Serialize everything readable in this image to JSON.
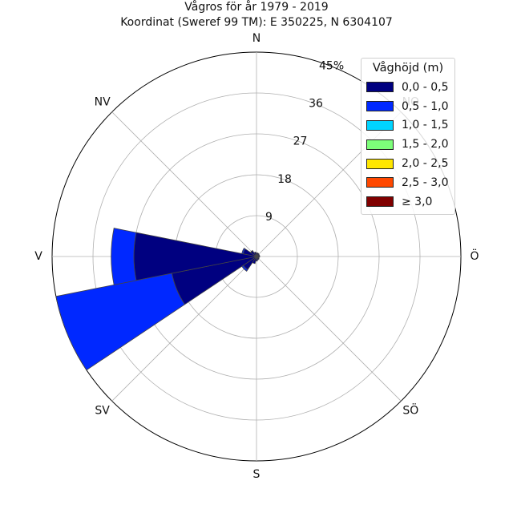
{
  "title": {
    "line1": "Vågros för år 1979 - 2019",
    "line2": "Koordinat (Sweref 99 TM): E 350225, N 6304107"
  },
  "chart_data": {
    "type": "polar-bar",
    "direction_labels": [
      {
        "label": "N",
        "angle_deg": 0
      },
      {
        "label": "NO",
        "angle_deg": 45
      },
      {
        "label": "Ö",
        "angle_deg": 90
      },
      {
        "label": "SÖ",
        "angle_deg": 135
      },
      {
        "label": "S",
        "angle_deg": 180
      },
      {
        "label": "SV",
        "angle_deg": 225
      },
      {
        "label": "V",
        "angle_deg": 270
      },
      {
        "label": "NV",
        "angle_deg": 315
      }
    ],
    "radial_ticks": [
      "9",
      "18",
      "27",
      "36",
      "45%"
    ],
    "radial_tick_values": [
      9,
      18,
      27,
      36,
      45
    ],
    "rmax": 45,
    "sector_width_deg": 22.5,
    "grid": true,
    "legend": {
      "title": "Våghöjd (m)",
      "placement": "top-right",
      "entries": [
        {
          "label": "0,0 - 0,5",
          "color": "#000080"
        },
        {
          "label": "0,5 - 1,0",
          "color": "#0028ff"
        },
        {
          "label": "1,0 - 1,5",
          "color": "#00d4ff"
        },
        {
          "label": "1,5 - 2,0",
          "color": "#7dff7a"
        },
        {
          "label": "2,0 - 2,5",
          "color": "#ffe600"
        },
        {
          "label": "2,5 - 3,0",
          "color": "#ff4800"
        },
        {
          "label": "≥ 3,0",
          "color": "#800000"
        }
      ]
    },
    "series": [
      {
        "bin": "0,0 - 0,5",
        "color": "#000080",
        "directions": [
          0,
          22.5,
          45,
          67.5,
          90,
          112.5,
          135,
          157.5,
          180,
          202.5,
          225,
          247.5,
          270,
          292.5,
          315,
          337.5
        ],
        "values": [
          0.8,
          0.8,
          0.7,
          0.7,
          0.7,
          0.6,
          0.7,
          0.8,
          1.0,
          1.6,
          3.5,
          19.0,
          27.0,
          3.0,
          1.5,
          1.0
        ]
      },
      {
        "bin": "0,5 - 1,0",
        "color": "#0028ff",
        "directions": [
          0,
          22.5,
          45,
          67.5,
          90,
          112.5,
          135,
          157.5,
          180,
          202.5,
          225,
          247.5,
          270,
          292.5,
          315,
          337.5
        ],
        "values": [
          0.0,
          0.0,
          0.0,
          0.0,
          0.0,
          0.0,
          0.0,
          0.0,
          0.0,
          0.0,
          0.4,
          26.0,
          5.0,
          0.3,
          0.1,
          0.0
        ]
      }
    ]
  }
}
